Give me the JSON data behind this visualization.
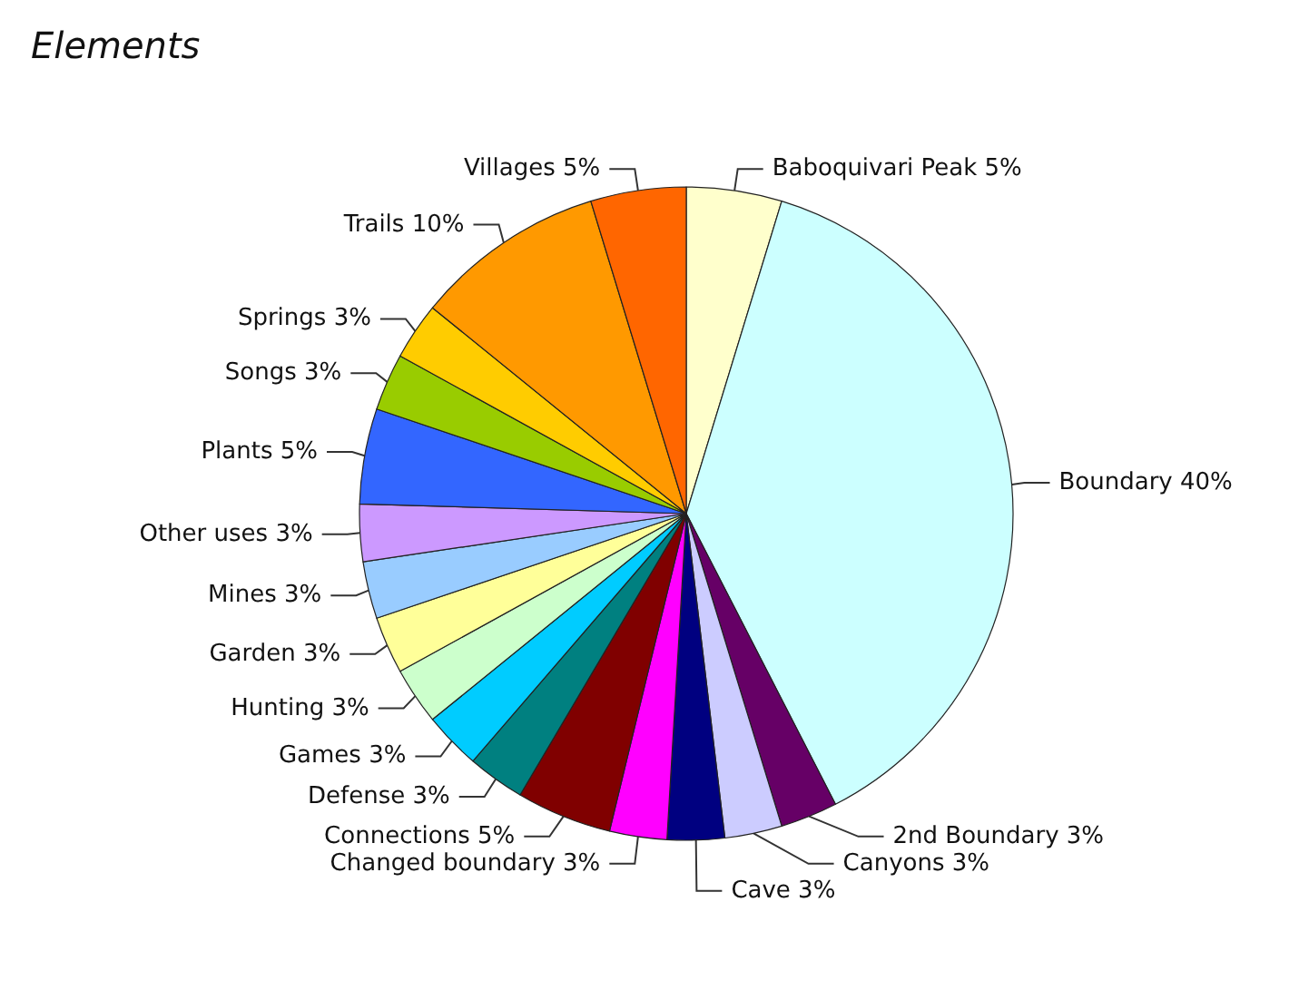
{
  "chart_data": {
    "type": "pie",
    "title": "Elements",
    "categories": [
      "Baboquivari Peak",
      "Boundary",
      "2nd Boundary",
      "Canyons",
      "Cave",
      "Changed boundary",
      "Connections",
      "Defense",
      "Games",
      "Hunting",
      "Garden",
      "Mines",
      "Other uses",
      "Plants",
      "Songs",
      "Springs",
      "Trails",
      "Villages"
    ],
    "values": [
      5,
      40,
      3,
      3,
      3,
      3,
      5,
      3,
      3,
      3,
      3,
      3,
      3,
      5,
      3,
      3,
      10,
      5
    ],
    "value_labels": [
      "5%",
      "40%",
      "3%",
      "3%",
      "3%",
      "3%",
      "5%",
      "3%",
      "3%",
      "3%",
      "3%",
      "3%",
      "3%",
      "5%",
      "3%",
      "3%",
      "10%",
      "5%"
    ],
    "colors": [
      "#ffffcc",
      "#ccffff",
      "#660066",
      "#ccccff",
      "#000080",
      "#ff00ff",
      "#800000",
      "#008080",
      "#00ccff",
      "#ccffcc",
      "#ffff99",
      "#99ccff",
      "#cc99ff",
      "#3366ff",
      "#99cc00",
      "#ffcc00",
      "#ff9900",
      "#ff6600"
    ],
    "legend": false
  }
}
